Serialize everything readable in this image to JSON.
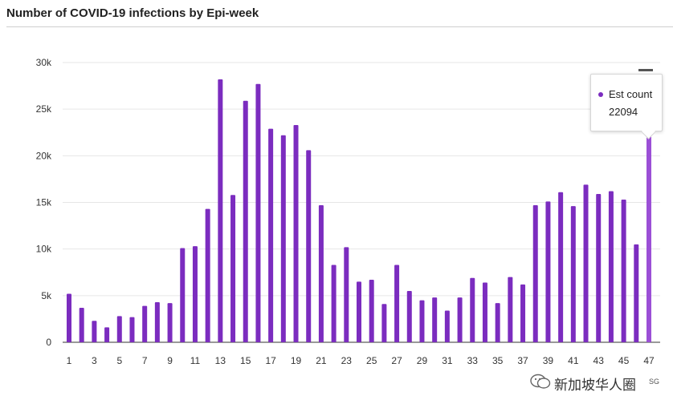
{
  "colors": {
    "bar": "#7b2cbf",
    "bar_highlight": "#9b4fd6",
    "grid": "#e6e6e6",
    "axis_text": "#333333"
  },
  "icons": {
    "menu": "hamburger-menu-icon",
    "watermark_logo": "wechat-logo-icon"
  },
  "watermark": {
    "text": "新加坡华人圈",
    "tail": "SG"
  },
  "tooltip": {
    "label": "Est count",
    "value": "22094"
  },
  "chart_data": {
    "type": "bar",
    "title": "Number of COVID-19 infections by Epi-week",
    "xlabel": "",
    "ylabel": "",
    "grid": true,
    "legend": "none",
    "ylim": [
      0,
      30000
    ],
    "yticks": [
      0,
      5000,
      10000,
      15000,
      20000,
      25000,
      30000
    ],
    "ytick_labels": [
      "0",
      "5k",
      "10k",
      "15k",
      "20k",
      "25k",
      "30k"
    ],
    "categories": [
      1,
      2,
      3,
      4,
      5,
      6,
      7,
      8,
      9,
      10,
      11,
      12,
      13,
      14,
      15,
      16,
      17,
      18,
      19,
      20,
      21,
      22,
      23,
      24,
      25,
      26,
      27,
      28,
      29,
      30,
      31,
      32,
      33,
      34,
      35,
      36,
      37,
      38,
      39,
      40,
      41,
      42,
      43,
      44,
      45,
      46,
      47
    ],
    "xtick_labels": [
      "1",
      "3",
      "5",
      "7",
      "9",
      "11",
      "13",
      "15",
      "17",
      "19",
      "21",
      "23",
      "25",
      "27",
      "29",
      "31",
      "33",
      "35",
      "37",
      "39",
      "41",
      "43",
      "45",
      "47"
    ],
    "series": [
      {
        "name": "Est count",
        "values": [
          5200,
          3700,
          2300,
          1600,
          2800,
          2700,
          3900,
          4300,
          4200,
          10100,
          10300,
          14300,
          28200,
          15800,
          25900,
          27700,
          22900,
          22200,
          23300,
          20600,
          14700,
          8300,
          10200,
          6500,
          6700,
          4100,
          8300,
          5500,
          4500,
          4800,
          3400,
          4800,
          6900,
          6400,
          4200,
          7000,
          6200,
          14700,
          15100,
          16100,
          14600,
          16900,
          15900,
          16200,
          15300,
          10500,
          22094
        ]
      }
    ],
    "highlight_index": 46
  }
}
